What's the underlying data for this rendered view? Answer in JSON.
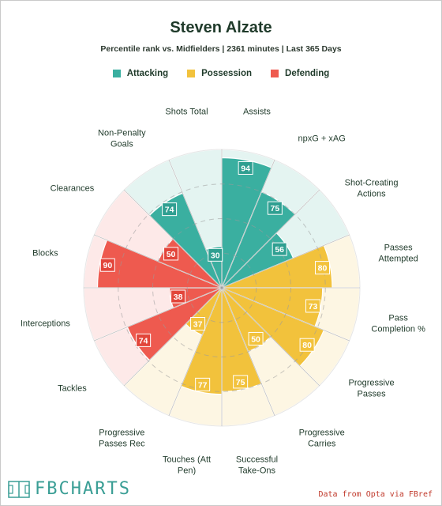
{
  "header": {
    "title": "Steven Alzate",
    "subtitle": "Percentile rank vs. Midfielders | 2361 minutes | Last 365 Days"
  },
  "legend": [
    {
      "label": "Attacking",
      "color": "#3aafa0"
    },
    {
      "label": "Possession",
      "color": "#f2c23c"
    },
    {
      "label": "Defending",
      "color": "#ee5a4f"
    }
  ],
  "chart_data": {
    "type": "radar-bar",
    "title": "Steven Alzate",
    "subtitle": "Percentile rank vs. Midfielders | 2361 minutes | Last 365 Days",
    "rmax": 100,
    "categories": [
      "Assists",
      "npxG + xAG",
      "Shot-Creating Actions",
      "Passes Attempted",
      "Pass Completion %",
      "Progressive Passes",
      "Progressive Carries",
      "Successful Take-Ons",
      "Touches (Att Pen)",
      "Progressive Passes Rec",
      "Tackles",
      "Interceptions",
      "Blocks",
      "Clearances",
      "Non-Penalty Goals",
      "Shots Total"
    ],
    "values": [
      94,
      75,
      56,
      80,
      73,
      80,
      50,
      75,
      77,
      37,
      74,
      38,
      90,
      50,
      74,
      30
    ],
    "groups": [
      "Attacking",
      "Attacking",
      "Attacking",
      "Possession",
      "Possession",
      "Possession",
      "Possession",
      "Possession",
      "Possession",
      "Possession",
      "Defending",
      "Defending",
      "Defending",
      "Defending",
      "Attacking",
      "Attacking"
    ],
    "colors": {
      "Attacking": {
        "fill": "#3aafa0",
        "bg": "#e4f4f1",
        "label_bg": "#2f9f91"
      },
      "Possession": {
        "fill": "#f2c23c",
        "bg": "#fdf6e3",
        "label_bg": "#f2c23c"
      },
      "Defending": {
        "fill": "#ee5a4f",
        "bg": "#fde9e8",
        "label_bg": "#e2453a"
      }
    },
    "grid": true
  },
  "footer": {
    "brand": "FBCHARTS",
    "credit": "Data from Opta via FBref"
  }
}
